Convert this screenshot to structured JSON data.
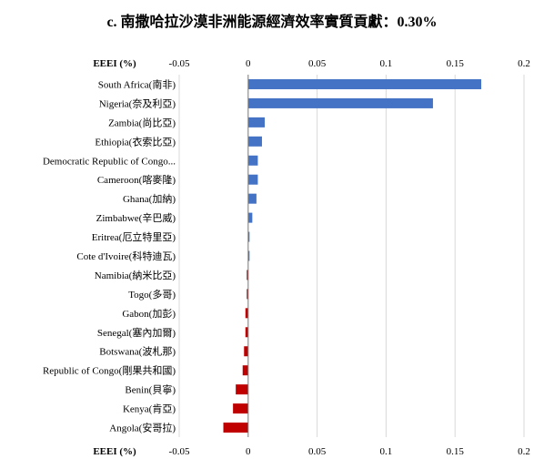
{
  "chart_data": {
    "type": "bar",
    "orientation": "horizontal",
    "title": "c. 南撒哈拉沙漠非洲能源經濟效率實質貢獻：0.30%",
    "axis_label": "EEEI (%)",
    "xlim": [
      -0.05,
      0.2
    ],
    "xticks": [
      "-0.05",
      "0",
      "0.05",
      "0.1",
      "0.15",
      "0.2"
    ],
    "xtick_values": [
      -0.05,
      0,
      0.05,
      0.1,
      0.15,
      0.2
    ],
    "grid": "vertical",
    "categories": [
      "South Africa(南非)",
      "Nigeria(奈及利亞)",
      "Zambia(尚比亞)",
      "Ethiopia(衣索比亞)",
      "Democratic Republic of Congo...",
      "Cameroon(喀麥隆)",
      "Ghana(加納)",
      "Zimbabwe(辛巴威)",
      "Eritrea(厄立特里亞)",
      "Cote d'Ivoire(科特迪瓦)",
      "Namibia(納米比亞)",
      "Togo(多哥)",
      "Gabon(加彭)",
      "Senegal(塞內加爾)",
      "Botswana(波札那)",
      "Republic of Congo(剛果共和國)",
      "Benin(貝寧)",
      "Kenya(肯亞)",
      "Angola(安哥拉)"
    ],
    "values": [
      0.169,
      0.134,
      0.012,
      0.01,
      0.007,
      0.007,
      0.006,
      0.003,
      0.001,
      0.001,
      -0.001,
      -0.001,
      -0.002,
      -0.002,
      -0.003,
      -0.004,
      -0.009,
      -0.011,
      -0.018
    ],
    "colors": {
      "positive": "#4472C4",
      "negative": "#C00000",
      "grid": "#D9D9D9",
      "axis": "#808080"
    }
  }
}
